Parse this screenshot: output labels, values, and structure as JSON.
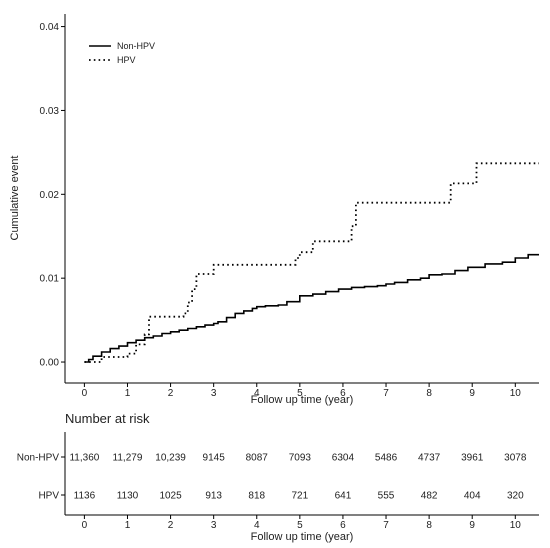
{
  "chart_data": {
    "type": "line",
    "xlabel": "Follow up time (year)",
    "ylabel": "Cumulative event",
    "xlim": [
      -0.45,
      10.55
    ],
    "ylim": [
      -0.0025,
      0.0415
    ],
    "x_ticks": [
      0,
      1,
      2,
      3,
      4,
      5,
      6,
      7,
      8,
      9,
      10
    ],
    "y_ticks": [
      0.0,
      0.01,
      0.02,
      0.03,
      0.04
    ],
    "y_tick_labels": [
      "0.00",
      "0.01",
      "0.02",
      "0.03",
      "0.04"
    ],
    "grid": false,
    "legend_position": "top-left",
    "series": [
      {
        "name": "Non-HPV",
        "style": "solid",
        "color": "#000000",
        "points": [
          [
            0,
            0
          ],
          [
            0.1,
            0.0003
          ],
          [
            0.2,
            0.0007
          ],
          [
            0.4,
            0.0012
          ],
          [
            0.6,
            0.0016
          ],
          [
            0.8,
            0.0019
          ],
          [
            1.0,
            0.0023
          ],
          [
            1.2,
            0.0026
          ],
          [
            1.4,
            0.0029
          ],
          [
            1.6,
            0.0031
          ],
          [
            1.8,
            0.0034
          ],
          [
            2.0,
            0.0036
          ],
          [
            2.2,
            0.0038
          ],
          [
            2.4,
            0.004
          ],
          [
            2.6,
            0.0042
          ],
          [
            2.8,
            0.0044
          ],
          [
            3.0,
            0.0046
          ],
          [
            3.1,
            0.0048
          ],
          [
            3.3,
            0.0053
          ],
          [
            3.5,
            0.0058
          ],
          [
            3.7,
            0.0061
          ],
          [
            3.9,
            0.0064
          ],
          [
            4.0,
            0.0066
          ],
          [
            4.2,
            0.0067
          ],
          [
            4.5,
            0.0068
          ],
          [
            4.7,
            0.0072
          ],
          [
            5.0,
            0.0079
          ],
          [
            5.3,
            0.0081
          ],
          [
            5.6,
            0.0084
          ],
          [
            5.9,
            0.0087
          ],
          [
            6.2,
            0.0089
          ],
          [
            6.5,
            0.009
          ],
          [
            6.8,
            0.0091
          ],
          [
            7.0,
            0.0093
          ],
          [
            7.2,
            0.0095
          ],
          [
            7.5,
            0.0098
          ],
          [
            7.8,
            0.01
          ],
          [
            8.0,
            0.0104
          ],
          [
            8.3,
            0.0105
          ],
          [
            8.6,
            0.0109
          ],
          [
            8.9,
            0.0113
          ],
          [
            9.3,
            0.0117
          ],
          [
            9.7,
            0.0119
          ],
          [
            10.0,
            0.0124
          ],
          [
            10.3,
            0.0128
          ],
          [
            10.55,
            0.0128
          ]
        ]
      },
      {
        "name": "HPV",
        "style": "dotted",
        "color": "#000000",
        "points": [
          [
            0,
            0
          ],
          [
            0.4,
            0.0006
          ],
          [
            1.0,
            0.001
          ],
          [
            1.2,
            0.0021
          ],
          [
            1.4,
            0.0033
          ],
          [
            1.5,
            0.0054
          ],
          [
            2.3,
            0.0058
          ],
          [
            2.4,
            0.0071
          ],
          [
            2.5,
            0.0087
          ],
          [
            2.6,
            0.0105
          ],
          [
            3.0,
            0.0116
          ],
          [
            4.9,
            0.0124
          ],
          [
            5.0,
            0.0131
          ],
          [
            5.3,
            0.0144
          ],
          [
            6.2,
            0.0162
          ],
          [
            6.3,
            0.019
          ],
          [
            8.5,
            0.0213
          ],
          [
            9.1,
            0.0237
          ],
          [
            10.55,
            0.0237
          ]
        ]
      }
    ]
  },
  "risk_table": {
    "title": "Number at risk",
    "xlabel": "Follow up time (year)",
    "x_ticks": [
      0,
      1,
      2,
      3,
      4,
      5,
      6,
      7,
      8,
      9,
      10
    ],
    "rows": [
      {
        "label": "Non-HPV",
        "values": [
          "11,360",
          "11,279",
          "10,239",
          "9145",
          "8087",
          "7093",
          "6304",
          "5486",
          "4737",
          "3961",
          "3078"
        ]
      },
      {
        "label": "HPV",
        "values": [
          "1136",
          "1130",
          "1025",
          "913",
          "818",
          "721",
          "641",
          "555",
          "482",
          "404",
          "320"
        ]
      }
    ]
  }
}
